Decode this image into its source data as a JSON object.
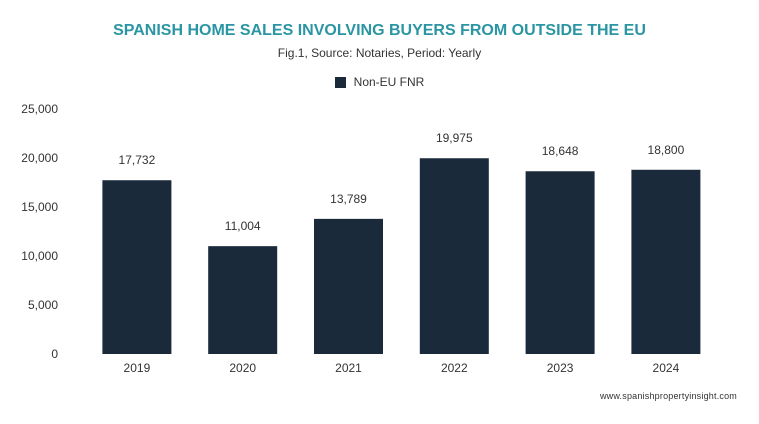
{
  "chart_data": {
    "type": "bar",
    "title": "SPANISH HOME SALES INVOLVING BUYERS FROM OUTSIDE THE EU",
    "subtitle": "Fig.1, Source: Notaries, Period: Yearly",
    "xlabel": "",
    "ylabel": "",
    "categories": [
      "2019",
      "2020",
      "2021",
      "2022",
      "2023",
      "2024"
    ],
    "series": [
      {
        "name": "Non-EU FNR",
        "values": [
          17732,
          11004,
          13789,
          19975,
          18648,
          18800
        ],
        "color": "#1a2a3a"
      }
    ],
    "data_labels": [
      "17,732",
      "11,004",
      "13,789",
      "19,975",
      "18,648",
      "18,800"
    ],
    "yticks": [
      "0",
      "5,000",
      "10,000",
      "15,000",
      "20,000",
      "25,000"
    ],
    "ylim": [
      0,
      25000
    ],
    "grid": false,
    "legend_position": "top-center"
  },
  "credit": "www.spanishpropertyinsight.com",
  "colors": {
    "title": "#2a95a3",
    "bar": "#1a2a3a"
  }
}
